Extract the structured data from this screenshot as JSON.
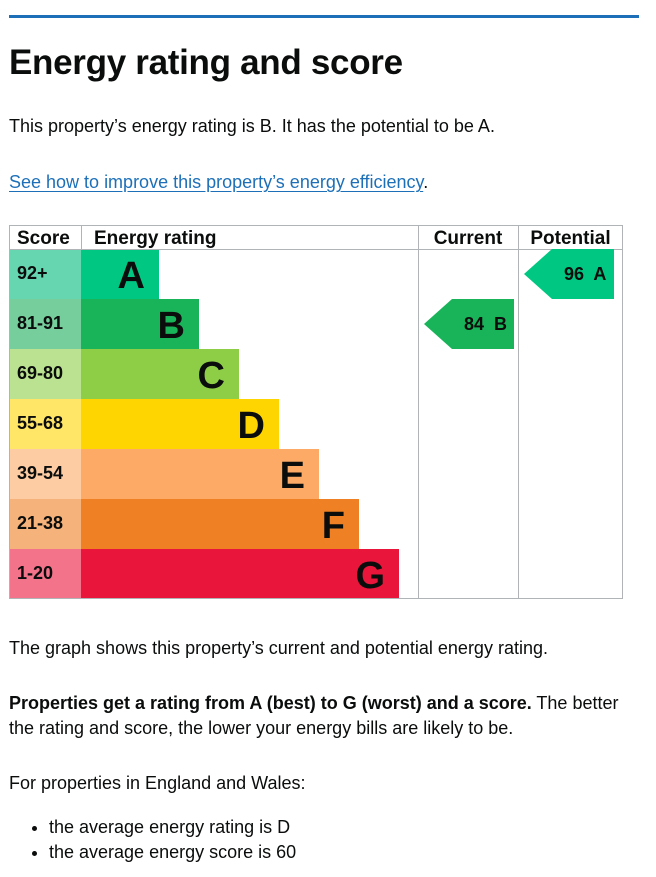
{
  "page": {
    "title": "Energy rating and score",
    "intro": "This property’s energy rating is B. It has the potential to be A.",
    "improve_link": "See how to improve this property’s energy efficiency",
    "improve_suffix": ".",
    "graph_caption": "The graph shows this property’s current and potential energy rating.",
    "scale_bold": "Properties get a rating from A (best) to G (worst) and a score.",
    "scale_rest": " The better the rating and score, the lower your energy bills are likely to be.",
    "region_intro": "For properties in England and Wales:",
    "facts": [
      "the average energy rating is D",
      "the average energy score is 60"
    ]
  },
  "chart_data": {
    "type": "table",
    "headers": {
      "score": "Score",
      "rating": "Energy rating",
      "current": "Current",
      "potential": "Potential"
    },
    "bands": [
      {
        "letter": "A",
        "score_range": "92+",
        "color": "#00c781",
        "score_color": "#66d6b0"
      },
      {
        "letter": "B",
        "score_range": "81-91",
        "color": "#19b459",
        "score_color": "#75ce9b"
      },
      {
        "letter": "C",
        "score_range": "69-80",
        "color": "#8dce46",
        "score_color": "#bbe290"
      },
      {
        "letter": "D",
        "score_range": "55-68",
        "color": "#ffd500",
        "score_color": "#ffe666"
      },
      {
        "letter": "E",
        "score_range": "39-54",
        "color": "#fcaa65",
        "score_color": "#fdcca3"
      },
      {
        "letter": "F",
        "score_range": "21-38",
        "color": "#ef8023",
        "score_color": "#f5b37b"
      },
      {
        "letter": "G",
        "score_range": "1-20",
        "color": "#e9153b",
        "score_color": "#f2738a"
      }
    ],
    "current": {
      "score": 84,
      "band": "B",
      "label": "84  B",
      "color": "#19b459"
    },
    "potential": {
      "score": 96,
      "band": "A",
      "label": "96  A",
      "color": "#00c781"
    }
  }
}
